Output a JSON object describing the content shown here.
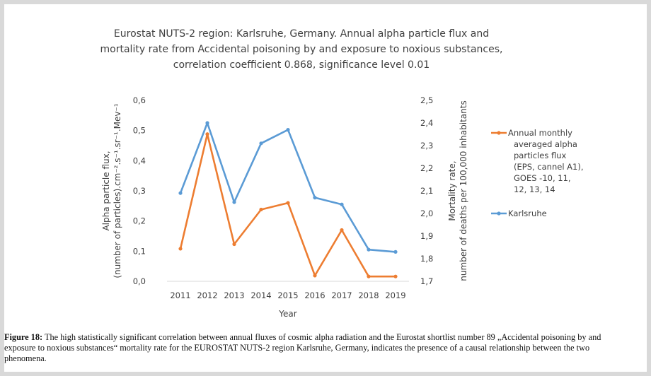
{
  "chart_data": {
    "type": "line",
    "title": [
      "Eurostat NUTS-2 region: Karlsruhe, Germany. Annual alpha particle flux and",
      "mortality rate from Accidental poisoning by and exposure to noxious substances,",
      "correlation coefficient 0.868, significance level 0.01"
    ],
    "categories": [
      "2011",
      "2012",
      "2013",
      "2014",
      "2015",
      "2016",
      "2017",
      "2018",
      "2019"
    ],
    "xlabel": "Year",
    "ylabel_left": [
      "Alpha particle flux,",
      "(number of particles).cm⁻².s⁻¹.sr⁻¹.Mev⁻¹"
    ],
    "ylabel_right": [
      "Mortality rate,",
      "number of deaths per 100,000 inhabitants"
    ],
    "ylim_left": [
      0,
      0.6
    ],
    "ylim_right": [
      1.7,
      2.5
    ],
    "yticks_left": [
      "0,0",
      "0,1",
      "0,2",
      "0,3",
      "0,4",
      "0,5",
      "0,6"
    ],
    "yticks_right": [
      "1,7",
      "1,8",
      "1,9",
      "2,0",
      "2,1",
      "2,2",
      "2,3",
      "2,4",
      "2,5"
    ],
    "grid": false,
    "legend_position": "right",
    "series": [
      {
        "name": [
          "Annual monthly",
          "averaged alpha",
          "particles flux",
          "(EPS, cannel A1),",
          "GOES -10, 11,",
          "12, 13, 14"
        ],
        "axis": "left",
        "color": "#ed7d31",
        "values": [
          0.108,
          0.488,
          0.123,
          0.238,
          0.26,
          0.019,
          0.17,
          0.016,
          0.016
        ]
      },
      {
        "name": [
          "Karlsruhe"
        ],
        "axis": "right",
        "color": "#5b9bd5",
        "values": [
          2.09,
          2.4,
          2.05,
          2.31,
          2.37,
          2.07,
          2.04,
          1.84,
          1.83
        ]
      }
    ]
  },
  "caption": {
    "label": "Figure 18:",
    "text": "The high statistically significant correlation between annual fluxes of cosmic alpha radiation and the Eurostat shortlist number 89 „Accidental poisoning by and exposure to noxious substances“ mortality rate for the EUROSTAT NUTS-2 region Karlsruhe, Germany, indicates the presence of a causal relationship between the two phenomena."
  }
}
